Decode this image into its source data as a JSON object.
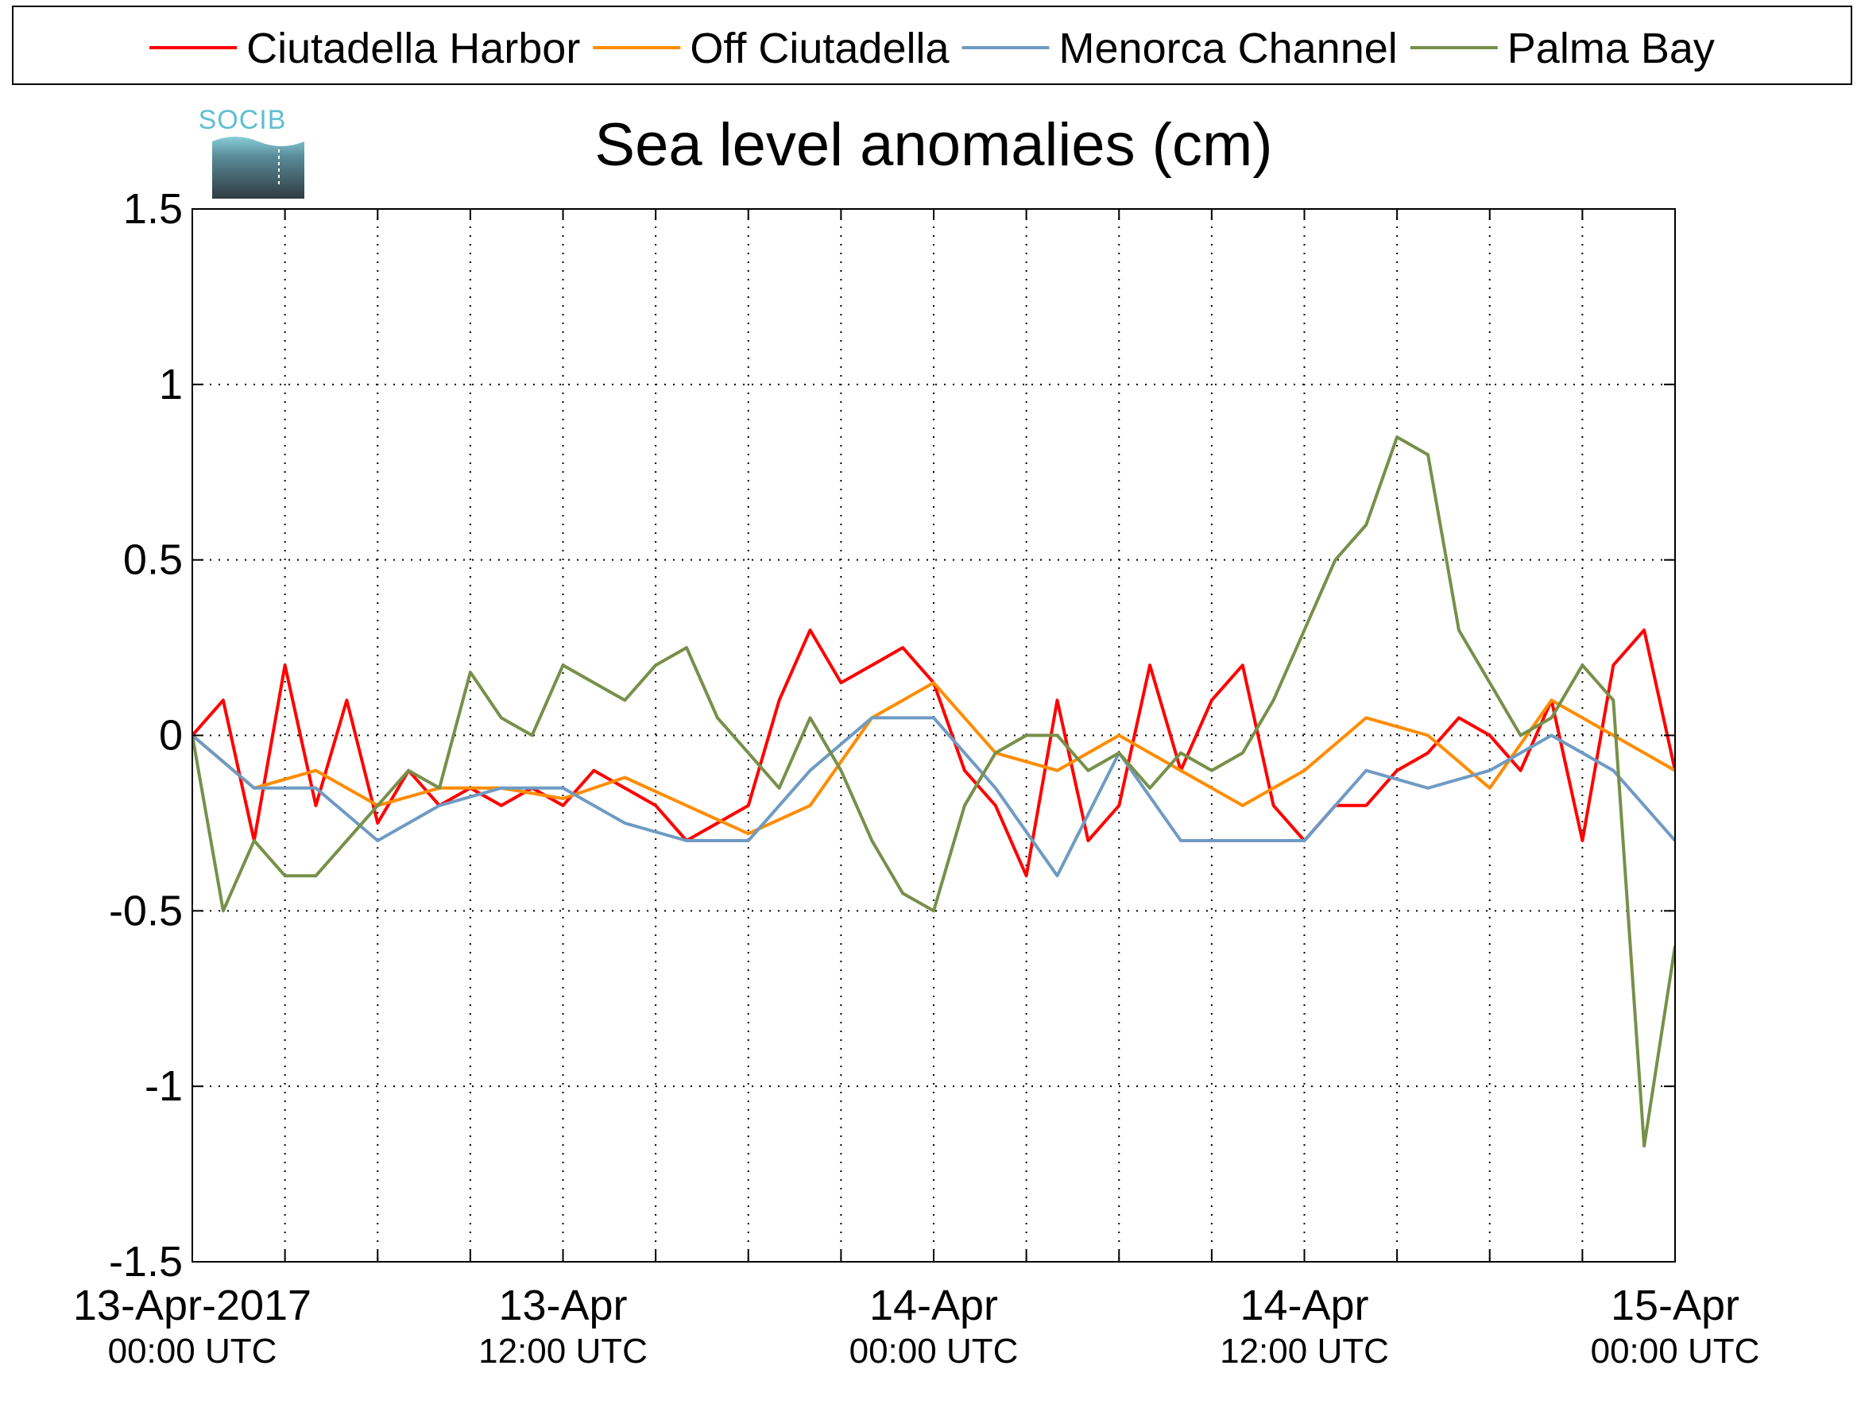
{
  "logo": {
    "text": "SOCIB",
    "color": "#5fbfd0"
  },
  "chart_data": {
    "type": "line",
    "title": "Sea level anomalies (cm)",
    "xlabel": "",
    "ylabel": "",
    "xlim": [
      "2017-04-13 00:00",
      "2017-04-15 00:00"
    ],
    "ylim": [
      -1.5,
      1.5
    ],
    "y_ticks": [
      -1.5,
      -1,
      -0.5,
      0,
      0.5,
      1,
      1.5
    ],
    "y_tick_labels": [
      "-1.5",
      "-1",
      "-0.5",
      "0",
      "0.5",
      "1",
      "1.5"
    ],
    "x_tick_labels": [
      {
        "at": "2017-04-13 00:00",
        "date": "13-Apr-2017",
        "time": "00:00 UTC"
      },
      {
        "at": "2017-04-13 12:00",
        "date": "13-Apr",
        "time": "12:00 UTC"
      },
      {
        "at": "2017-04-14 00:00",
        "date": "14-Apr",
        "time": "00:00 UTC"
      },
      {
        "at": "2017-04-14 12:00",
        "date": "14-Apr",
        "time": "12:00 UTC"
      },
      {
        "at": "2017-04-15 00:00",
        "date": "15-Apr",
        "time": "00:00 UTC"
      }
    ],
    "x_minor_every_hours": 3,
    "grid": true,
    "legend_position": "top, outside plot, horizontal",
    "series": [
      {
        "name": "Ciutadella Harbor",
        "color": "#ff0000",
        "x": [
          "2017-04-13 00:00",
          "2017-04-13 01:00",
          "2017-04-13 02:00",
          "2017-04-13 03:00",
          "2017-04-13 04:00",
          "2017-04-13 05:00",
          "2017-04-13 06:00",
          "2017-04-13 07:00",
          "2017-04-13 08:00",
          "2017-04-13 09:00",
          "2017-04-13 10:00",
          "2017-04-13 11:00",
          "2017-04-13 12:00",
          "2017-04-13 13:00",
          "2017-04-13 14:00",
          "2017-04-13 15:00",
          "2017-04-13 16:00",
          "2017-04-13 17:00",
          "2017-04-13 18:00",
          "2017-04-13 19:00",
          "2017-04-13 20:00",
          "2017-04-13 21:00",
          "2017-04-13 22:00",
          "2017-04-13 23:00",
          "2017-04-14 00:00",
          "2017-04-14 01:00",
          "2017-04-14 02:00",
          "2017-04-14 03:00",
          "2017-04-14 04:00",
          "2017-04-14 05:00",
          "2017-04-14 06:00",
          "2017-04-14 07:00",
          "2017-04-14 08:00",
          "2017-04-14 09:00",
          "2017-04-14 10:00",
          "2017-04-14 11:00",
          "2017-04-14 12:00",
          "2017-04-14 13:00",
          "2017-04-14 14:00",
          "2017-04-14 15:00",
          "2017-04-14 16:00",
          "2017-04-14 17:00",
          "2017-04-14 18:00",
          "2017-04-14 19:00",
          "2017-04-14 20:00",
          "2017-04-14 21:00",
          "2017-04-14 22:00",
          "2017-04-14 23:00",
          "2017-04-15 00:00"
        ],
        "values": [
          0.0,
          0.1,
          -0.3,
          0.2,
          -0.2,
          0.1,
          -0.25,
          -0.1,
          -0.2,
          -0.15,
          -0.2,
          -0.15,
          -0.2,
          -0.1,
          -0.15,
          -0.2,
          -0.3,
          -0.25,
          -0.2,
          0.1,
          0.3,
          0.15,
          0.2,
          0.25,
          0.15,
          -0.1,
          -0.2,
          -0.4,
          0.1,
          -0.3,
          -0.2,
          0.2,
          -0.1,
          0.1,
          0.2,
          -0.2,
          -0.3,
          -0.2,
          -0.2,
          -0.1,
          -0.05,
          0.05,
          0.0,
          -0.1,
          0.1,
          -0.3,
          0.2,
          0.3,
          -0.1
        ]
      },
      {
        "name": "Off Ciutadella",
        "color": "#ff8c00",
        "x": [
          "2017-04-13 00:00",
          "2017-04-13 02:00",
          "2017-04-13 04:00",
          "2017-04-13 06:00",
          "2017-04-13 08:00",
          "2017-04-13 10:00",
          "2017-04-13 12:00",
          "2017-04-13 14:00",
          "2017-04-13 16:00",
          "2017-04-13 18:00",
          "2017-04-13 20:00",
          "2017-04-13 22:00",
          "2017-04-14 00:00",
          "2017-04-14 02:00",
          "2017-04-14 04:00",
          "2017-04-14 06:00",
          "2017-04-14 08:00",
          "2017-04-14 10:00",
          "2017-04-14 12:00",
          "2017-04-14 14:00",
          "2017-04-14 16:00",
          "2017-04-14 18:00",
          "2017-04-14 20:00",
          "2017-04-14 22:00",
          "2017-04-15 00:00"
        ],
        "values": [
          0.0,
          -0.15,
          -0.1,
          -0.2,
          -0.15,
          -0.15,
          -0.18,
          -0.12,
          -0.2,
          -0.28,
          -0.2,
          0.05,
          0.15,
          -0.05,
          -0.1,
          0.0,
          -0.1,
          -0.2,
          -0.1,
          0.05,
          0.0,
          -0.15,
          0.1,
          0.0,
          -0.1
        ]
      },
      {
        "name": "Menorca Channel",
        "color": "#6f9bc3",
        "x": [
          "2017-04-13 00:00",
          "2017-04-13 02:00",
          "2017-04-13 04:00",
          "2017-04-13 06:00",
          "2017-04-13 08:00",
          "2017-04-13 10:00",
          "2017-04-13 12:00",
          "2017-04-13 14:00",
          "2017-04-13 16:00",
          "2017-04-13 18:00",
          "2017-04-13 20:00",
          "2017-04-13 22:00",
          "2017-04-14 00:00",
          "2017-04-14 02:00",
          "2017-04-14 04:00",
          "2017-04-14 06:00",
          "2017-04-14 08:00",
          "2017-04-14 10:00",
          "2017-04-14 12:00",
          "2017-04-14 14:00",
          "2017-04-14 16:00",
          "2017-04-14 18:00",
          "2017-04-14 20:00",
          "2017-04-14 22:00",
          "2017-04-15 00:00"
        ],
        "values": [
          0.0,
          -0.15,
          -0.15,
          -0.3,
          -0.2,
          -0.15,
          -0.15,
          -0.25,
          -0.3,
          -0.3,
          -0.1,
          0.05,
          0.05,
          -0.15,
          -0.4,
          -0.05,
          -0.3,
          -0.3,
          -0.3,
          -0.1,
          -0.15,
          -0.1,
          0.0,
          -0.1,
          -0.3
        ]
      },
      {
        "name": "Palma Bay",
        "color": "#77904a",
        "x": [
          "2017-04-13 00:00",
          "2017-04-13 01:00",
          "2017-04-13 02:00",
          "2017-04-13 03:00",
          "2017-04-13 04:00",
          "2017-04-13 05:00",
          "2017-04-13 06:00",
          "2017-04-13 07:00",
          "2017-04-13 08:00",
          "2017-04-13 09:00",
          "2017-04-13 10:00",
          "2017-04-13 11:00",
          "2017-04-13 12:00",
          "2017-04-13 13:00",
          "2017-04-13 14:00",
          "2017-04-13 15:00",
          "2017-04-13 16:00",
          "2017-04-13 17:00",
          "2017-04-13 18:00",
          "2017-04-13 19:00",
          "2017-04-13 20:00",
          "2017-04-13 21:00",
          "2017-04-13 22:00",
          "2017-04-13 23:00",
          "2017-04-14 00:00",
          "2017-04-14 01:00",
          "2017-04-14 02:00",
          "2017-04-14 03:00",
          "2017-04-14 04:00",
          "2017-04-14 05:00",
          "2017-04-14 06:00",
          "2017-04-14 07:00",
          "2017-04-14 08:00",
          "2017-04-14 09:00",
          "2017-04-14 10:00",
          "2017-04-14 11:00",
          "2017-04-14 12:00",
          "2017-04-14 13:00",
          "2017-04-14 14:00",
          "2017-04-14 15:00",
          "2017-04-14 16:00",
          "2017-04-14 17:00",
          "2017-04-14 18:00",
          "2017-04-14 19:00",
          "2017-04-14 20:00",
          "2017-04-14 21:00",
          "2017-04-14 22:00",
          "2017-04-14 23:00",
          "2017-04-15 00:00"
        ],
        "values": [
          0.0,
          -0.5,
          -0.3,
          -0.4,
          -0.4,
          -0.3,
          -0.2,
          -0.1,
          -0.15,
          0.18,
          0.05,
          0.0,
          0.2,
          0.15,
          0.1,
          0.2,
          0.25,
          0.05,
          -0.05,
          -0.15,
          0.05,
          -0.1,
          -0.3,
          -0.45,
          -0.5,
          -0.2,
          -0.05,
          0.0,
          0.0,
          -0.1,
          -0.05,
          -0.15,
          -0.05,
          -0.1,
          -0.05,
          0.1,
          0.3,
          0.5,
          0.6,
          0.85,
          0.8,
          0.3,
          0.15,
          0.0,
          0.05,
          0.2,
          0.1,
          -1.17,
          -0.6
        ]
      }
    ]
  }
}
